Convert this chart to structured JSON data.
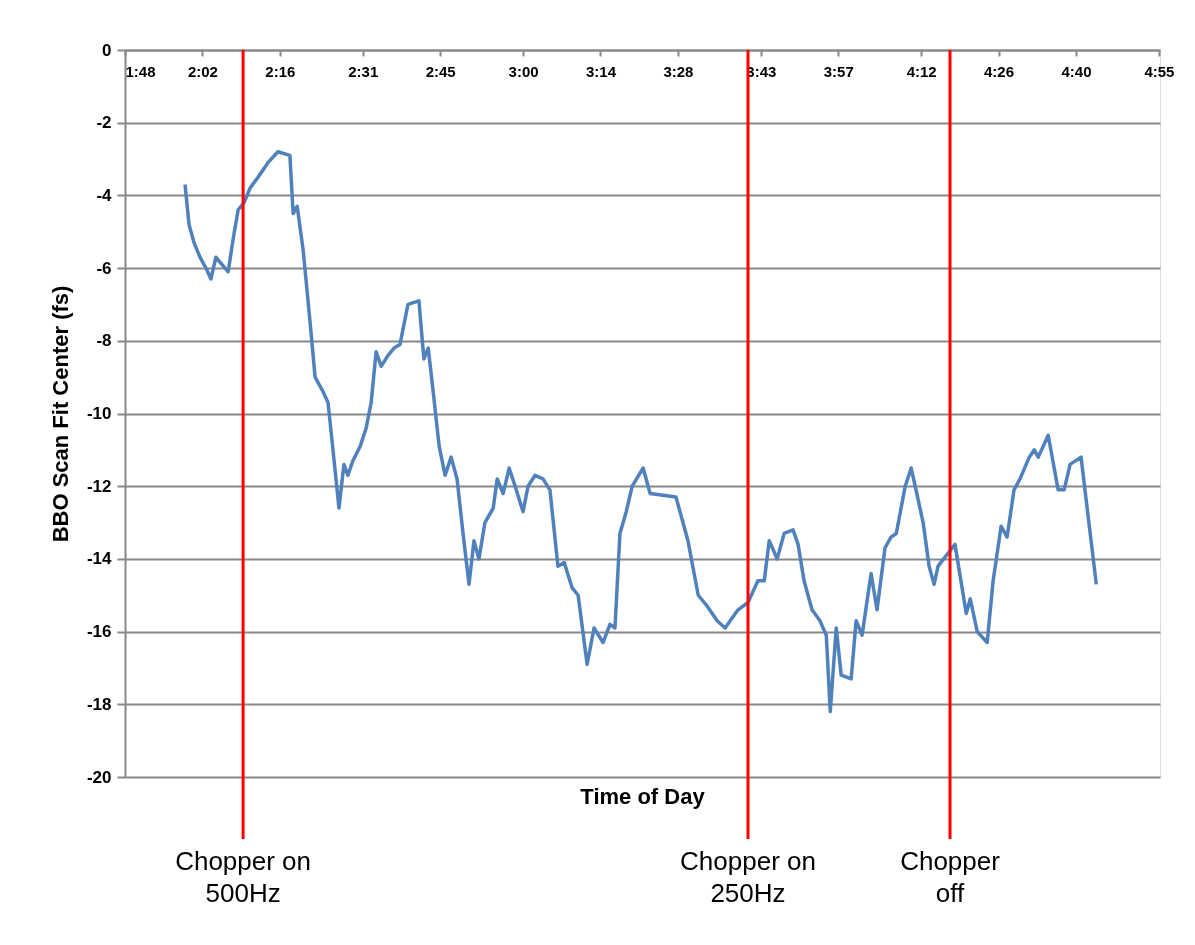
{
  "chart_data": {
    "type": "line",
    "xlabel": "Time of Day",
    "ylabel": "BBO Scan Fit Center (fs)",
    "xlim": [
      1.8,
      4.92
    ],
    "ylim": [
      -20,
      0
    ],
    "xticks": [
      {
        "value": 1.8,
        "label": "1:48"
      },
      {
        "value": 2.0333,
        "label": "2:02"
      },
      {
        "value": 2.2667,
        "label": "2:16"
      },
      {
        "value": 2.5167,
        "label": "2:31"
      },
      {
        "value": 2.75,
        "label": "2:45"
      },
      {
        "value": 3.0,
        "label": "3:00"
      },
      {
        "value": 3.2333,
        "label": "3:14"
      },
      {
        "value": 3.4667,
        "label": "3:28"
      },
      {
        "value": 3.7167,
        "label": "3:43"
      },
      {
        "value": 3.95,
        "label": "3:57"
      },
      {
        "value": 4.2,
        "label": "4:12"
      },
      {
        "value": 4.4333,
        "label": "4:26"
      },
      {
        "value": 4.6667,
        "label": "4:40"
      },
      {
        "value": 4.9167,
        "label": "4:55"
      }
    ],
    "yticks": [
      0,
      -2,
      -4,
      -6,
      -8,
      -10,
      -12,
      -14,
      -16,
      -18,
      -20
    ],
    "grid": "y",
    "legend": false,
    "marker": "none",
    "line_style": "solid",
    "ref_lines": [
      {
        "axis": "x",
        "value": 2.156,
        "label": "Chopper on 500Hz",
        "color": "#ff0000"
      },
      {
        "axis": "x",
        "value": 3.678,
        "label": "Chopper on 250Hz",
        "color": "#ff0000"
      },
      {
        "axis": "x",
        "value": 4.287,
        "label": "Chopper off",
        "color": "#ff0000"
      }
    ],
    "series": [
      {
        "color": "#4f81bd",
        "x": [
          1.981,
          1.993,
          2.008,
          2.026,
          2.044,
          2.059,
          2.074,
          2.092,
          2.111,
          2.126,
          2.141,
          2.159,
          2.177,
          2.201,
          2.231,
          2.261,
          2.297,
          2.307,
          2.319,
          2.337,
          2.358,
          2.373,
          2.397,
          2.412,
          2.427,
          2.445,
          2.46,
          2.472,
          2.487,
          2.509,
          2.527,
          2.542,
          2.557,
          2.572,
          2.593,
          2.611,
          2.629,
          2.653,
          2.686,
          2.701,
          2.714,
          2.729,
          2.747,
          2.765,
          2.783,
          2.801,
          2.819,
          2.837,
          2.852,
          2.867,
          2.885,
          2.91,
          2.922,
          2.94,
          2.958,
          2.976,
          3.0,
          3.015,
          3.036,
          3.06,
          3.081,
          3.105,
          3.124,
          3.148,
          3.166,
          3.193,
          3.214,
          3.241,
          3.262,
          3.277,
          3.292,
          3.311,
          3.329,
          3.362,
          3.383,
          3.461,
          3.497,
          3.528,
          3.555,
          3.585,
          3.609,
          3.648,
          3.678,
          3.708,
          3.727,
          3.742,
          3.766,
          3.787,
          3.814,
          3.829,
          3.847,
          3.871,
          3.895,
          3.914,
          3.926,
          3.944,
          3.959,
          3.989,
          4.004,
          4.022,
          4.049,
          4.067,
          4.091,
          4.109,
          4.125,
          4.152,
          4.17,
          4.206,
          4.224,
          4.239,
          4.251,
          4.302,
          4.336,
          4.348,
          4.369,
          4.399,
          4.417,
          4.441,
          4.459,
          4.48,
          4.498,
          4.526,
          4.541,
          4.553,
          4.583,
          4.613,
          4.631,
          4.649,
          4.682,
          4.703,
          4.728
        ],
        "values": [
          -3.7,
          -4.8,
          -5.3,
          -5.7,
          -6.0,
          -6.3,
          -5.7,
          -5.9,
          -6.1,
          -5.2,
          -4.4,
          -4.2,
          -3.8,
          -3.5,
          -3.1,
          -2.8,
          -2.9,
          -4.5,
          -4.3,
          -5.5,
          -7.5,
          -9.0,
          -9.4,
          -9.7,
          -11.0,
          -12.6,
          -11.4,
          -11.7,
          -11.3,
          -10.9,
          -10.4,
          -9.7,
          -8.3,
          -8.7,
          -8.4,
          -8.2,
          -8.1,
          -7.0,
          -6.9,
          -8.5,
          -8.2,
          -9.4,
          -10.9,
          -11.7,
          -11.2,
          -11.8,
          -13.3,
          -14.7,
          -13.5,
          -14.0,
          -13.0,
          -12.6,
          -11.8,
          -12.2,
          -11.5,
          -12.0,
          -12.7,
          -12.0,
          -11.7,
          -11.8,
          -12.1,
          -14.2,
          -14.1,
          -14.8,
          -15.0,
          -16.9,
          -15.9,
          -16.3,
          -15.8,
          -15.9,
          -13.3,
          -12.7,
          -12.0,
          -11.5,
          -12.2,
          -12.3,
          -13.5,
          -15.0,
          -15.3,
          -15.7,
          -15.9,
          -15.4,
          -15.2,
          -14.6,
          -14.6,
          -13.5,
          -14.0,
          -13.3,
          -13.2,
          -13.6,
          -14.6,
          -15.4,
          -15.7,
          -16.1,
          -18.2,
          -15.9,
          -17.2,
          -17.3,
          -15.7,
          -16.1,
          -14.4,
          -15.4,
          -13.7,
          -13.4,
          -13.3,
          -12.0,
          -11.5,
          -13.0,
          -14.2,
          -14.7,
          -14.2,
          -13.6,
          -15.5,
          -15.1,
          -16.0,
          -16.3,
          -14.6,
          -13.1,
          -13.4,
          -12.1,
          -11.8,
          -11.2,
          -11.0,
          -11.2,
          -10.6,
          -12.1,
          -12.1,
          -11.4,
          -11.2,
          -12.8,
          -14.7
        ]
      }
    ]
  }
}
